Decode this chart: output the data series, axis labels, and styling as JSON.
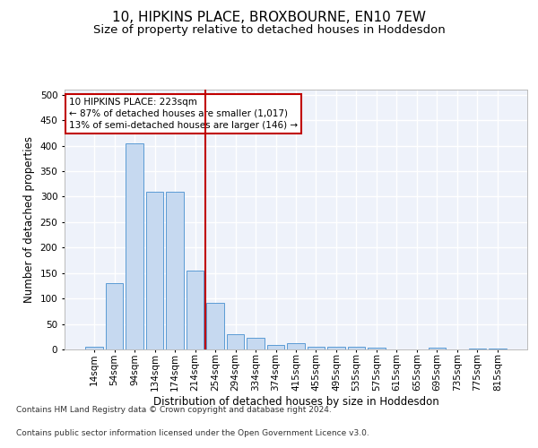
{
  "title_line1": "10, HIPKINS PLACE, BROXBOURNE, EN10 7EW",
  "title_line2": "Size of property relative to detached houses in Hoddesdon",
  "xlabel": "Distribution of detached houses by size in Hoddesdon",
  "ylabel": "Number of detached properties",
  "categories": [
    "14sqm",
    "54sqm",
    "94sqm",
    "134sqm",
    "174sqm",
    "214sqm",
    "254sqm",
    "294sqm",
    "334sqm",
    "374sqm",
    "415sqm",
    "455sqm",
    "495sqm",
    "535sqm",
    "575sqm",
    "615sqm",
    "655sqm",
    "695sqm",
    "735sqm",
    "775sqm",
    "815sqm"
  ],
  "values": [
    5,
    130,
    405,
    310,
    310,
    155,
    92,
    30,
    22,
    8,
    13,
    5,
    6,
    5,
    3,
    0,
    0,
    3,
    0,
    2,
    2
  ],
  "bar_color": "#c6d9f0",
  "bar_edge_color": "#5b9bd5",
  "vline_x": 5.5,
  "vline_color": "#c00000",
  "annotation_line1": "10 HIPKINS PLACE: 223sqm",
  "annotation_line2": "← 87% of detached houses are smaller (1,017)",
  "annotation_line3": "13% of semi-detached houses are larger (146) →",
  "annotation_box_color": "#c00000",
  "ylim": [
    0,
    510
  ],
  "yticks": [
    0,
    50,
    100,
    150,
    200,
    250,
    300,
    350,
    400,
    450,
    500
  ],
  "footnote1": "Contains HM Land Registry data © Crown copyright and database right 2024.",
  "footnote2": "Contains public sector information licensed under the Open Government Licence v3.0.",
  "bg_color": "#eef2fa",
  "grid_color": "#ffffff",
  "title_fontsize": 11,
  "subtitle_fontsize": 9.5,
  "axis_label_fontsize": 8.5,
  "tick_fontsize": 7.5,
  "annotation_fontsize": 7.5,
  "footnote_fontsize": 6.5
}
